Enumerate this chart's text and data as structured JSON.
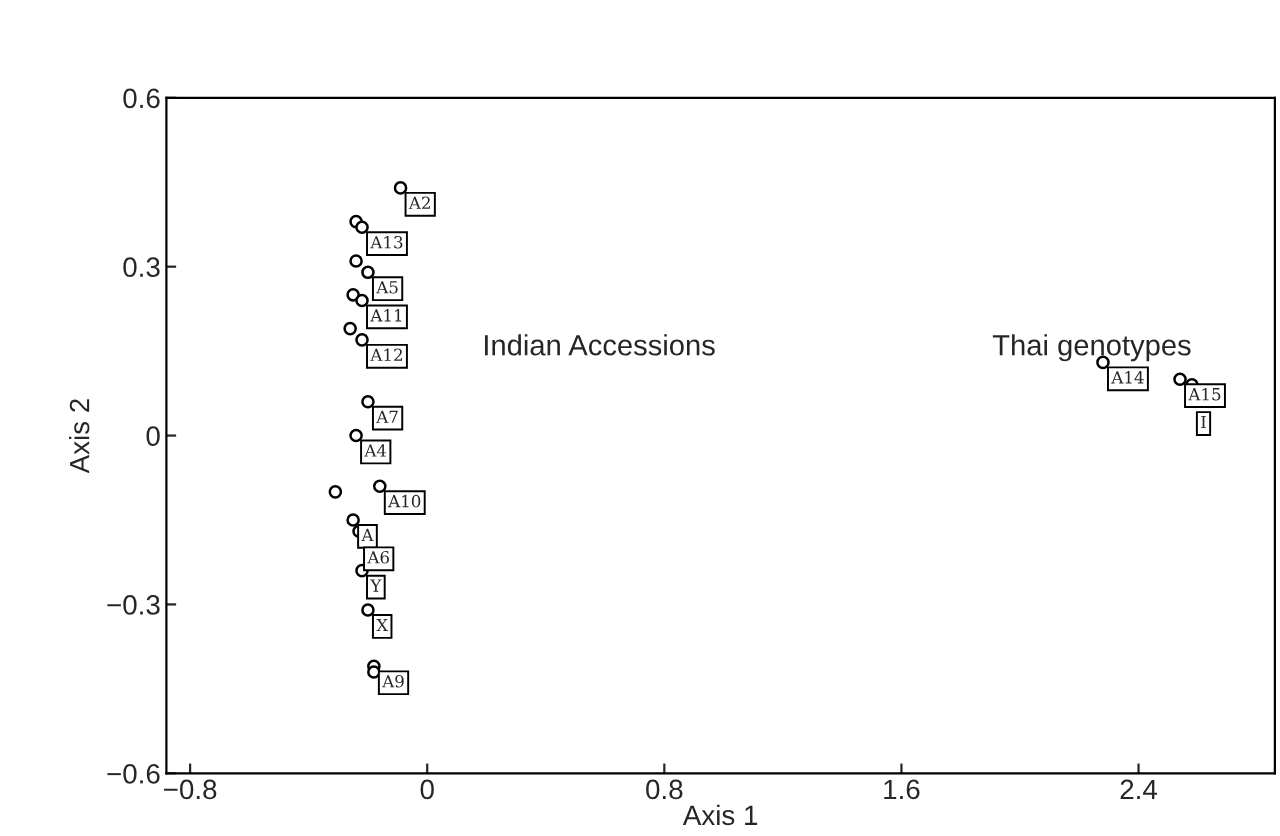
{
  "chart_data": {
    "type": "scatter",
    "xlabel": "Axis 1",
    "ylabel": "Axis 2",
    "xlim": [
      -0.88,
      2.86
    ],
    "ylim": [
      -0.6,
      0.6
    ],
    "xticks": [
      {
        "value": -0.8,
        "label": "−0.8"
      },
      0,
      0.8,
      1.6,
      2.4
    ],
    "yticks": [
      {
        "value": -0.6,
        "label": "−0.6"
      },
      {
        "value": -0.3,
        "label": "−0.3"
      },
      0,
      0.3,
      0.6
    ],
    "marker": "circle",
    "grid": false,
    "legend": false,
    "series": [
      {
        "color": "#000000",
        "x": [
          -0.09,
          -0.24,
          -0.22,
          -0.24,
          -0.2,
          -0.25,
          -0.22,
          -0.26,
          -0.22,
          -0.2,
          -0.24,
          -0.16,
          -0.31,
          -0.25,
          -0.23,
          -0.22,
          -0.2,
          -0.18,
          -0.18,
          2.28,
          2.54,
          2.58
        ],
        "values": [
          0.44,
          0.38,
          0.37,
          0.31,
          0.29,
          0.25,
          0.24,
          0.19,
          0.17,
          0.06,
          0.0,
          -0.09,
          -0.1,
          -0.15,
          -0.17,
          -0.24,
          -0.31,
          -0.41,
          -0.42,
          0.13,
          0.1,
          0.09
        ],
        "value_labels": [
          "A2",
          null,
          "A13",
          null,
          "A5",
          null,
          "A11",
          null,
          "A12",
          "A7",
          "A4",
          "A10",
          null,
          "A",
          "A6",
          "Y",
          "X",
          "A9",
          null,
          "A14",
          "A15",
          "I"
        ]
      }
    ],
    "annotations": [
      "Indian Accessions",
      "Thai genotypes"
    ]
  }
}
